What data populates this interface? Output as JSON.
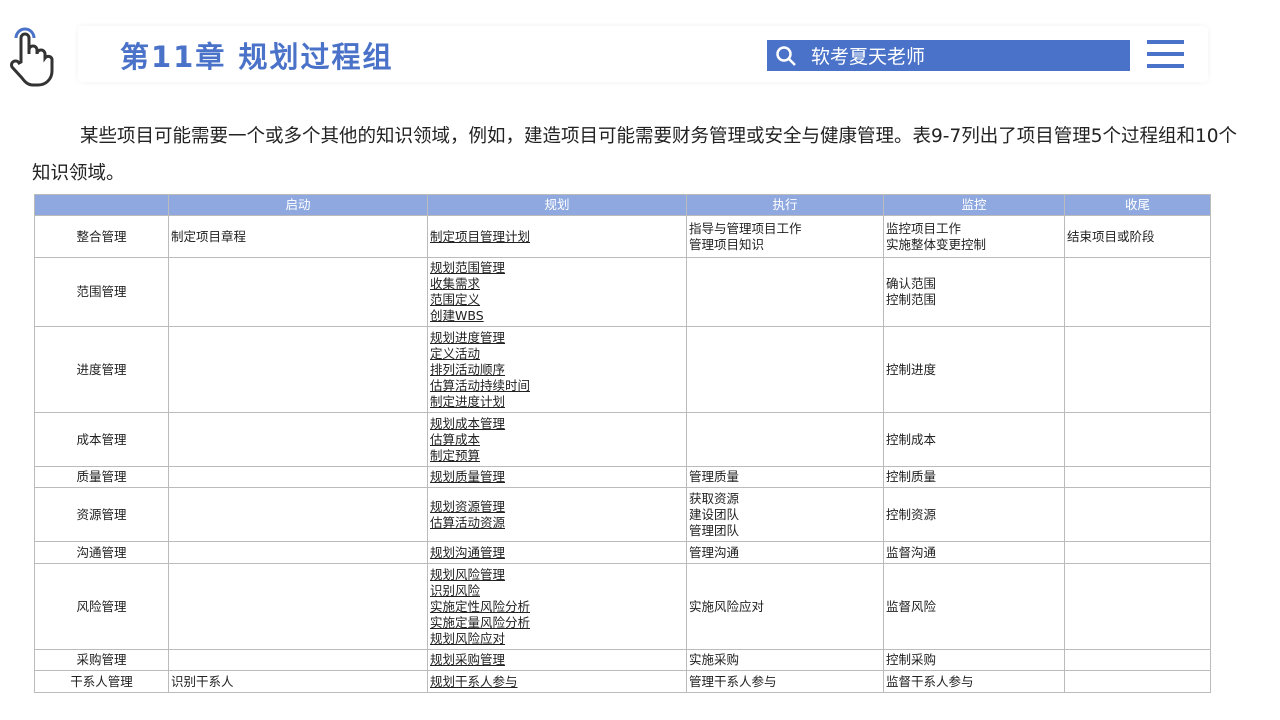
{
  "header": {
    "title": "第11章 规划过程组",
    "search_text": "软考夏天老师"
  },
  "intro": "某些项目可能需要一个或多个其他的知识领域，例如，建造项目可能需要财务管理或安全与健康管理。表9-7列出了项目管理5个过程组和10个知识领域。",
  "table": {
    "headers": [
      "",
      "启动",
      "规划",
      "执行",
      "监控",
      "收尾"
    ],
    "rows": [
      {
        "area": "整合管理",
        "initiating": [
          "制定项目章程"
        ],
        "planning": [
          "制定项目管理计划"
        ],
        "executing": [
          "指导与管理项目工作",
          "管理项目知识"
        ],
        "monitoring": [
          "监控项目工作",
          "实施整体变更控制"
        ],
        "closing": [
          "结束项目或阶段"
        ]
      },
      {
        "area": "范围管理",
        "initiating": [],
        "planning": [
          "规划范围管理",
          "收集需求",
          "范围定义",
          "创建WBS"
        ],
        "executing": [],
        "monitoring": [
          "确认范围",
          "控制范围"
        ],
        "closing": []
      },
      {
        "area": "进度管理",
        "initiating": [],
        "planning": [
          "规划进度管理",
          "定义活动",
          "排列活动顺序",
          "估算活动持续时间",
          "制定进度计划"
        ],
        "executing": [],
        "monitoring": [
          "控制进度"
        ],
        "closing": []
      },
      {
        "area": "成本管理",
        "initiating": [],
        "planning": [
          "规划成本管理",
          "估算成本",
          "制定预算"
        ],
        "executing": [],
        "monitoring": [
          "控制成本"
        ],
        "closing": []
      },
      {
        "area": "质量管理",
        "initiating": [],
        "planning": [
          "规划质量管理"
        ],
        "executing": [
          "管理质量"
        ],
        "monitoring": [
          "控制质量"
        ],
        "closing": []
      },
      {
        "area": "资源管理",
        "initiating": [],
        "planning": [
          "规划资源管理",
          "估算活动资源"
        ],
        "executing": [
          "获取资源",
          "建设团队",
          "管理团队"
        ],
        "monitoring": [
          "控制资源"
        ],
        "closing": []
      },
      {
        "area": "沟通管理",
        "initiating": [],
        "planning": [
          "规划沟通管理"
        ],
        "executing": [
          "管理沟通"
        ],
        "monitoring": [
          "监督沟通"
        ],
        "closing": []
      },
      {
        "area": "风险管理",
        "initiating": [],
        "planning": [
          "规划风险管理",
          "识别风险",
          "实施定性风险分析",
          "实施定量风险分析",
          "规划风险应对"
        ],
        "executing": [
          "实施风险应对"
        ],
        "monitoring": [
          "监督风险"
        ],
        "closing": []
      },
      {
        "area": "采购管理",
        "initiating": [],
        "planning": [
          "规划采购管理"
        ],
        "executing": [
          "实施采购"
        ],
        "monitoring": [
          "控制采购"
        ],
        "closing": []
      },
      {
        "area": "干系人管理",
        "initiating": [
          "识别干系人"
        ],
        "planning": [
          "规划干系人参与"
        ],
        "executing": [
          "管理干系人参与"
        ],
        "monitoring": [
          "监督干系人参与"
        ],
        "closing": []
      }
    ]
  }
}
